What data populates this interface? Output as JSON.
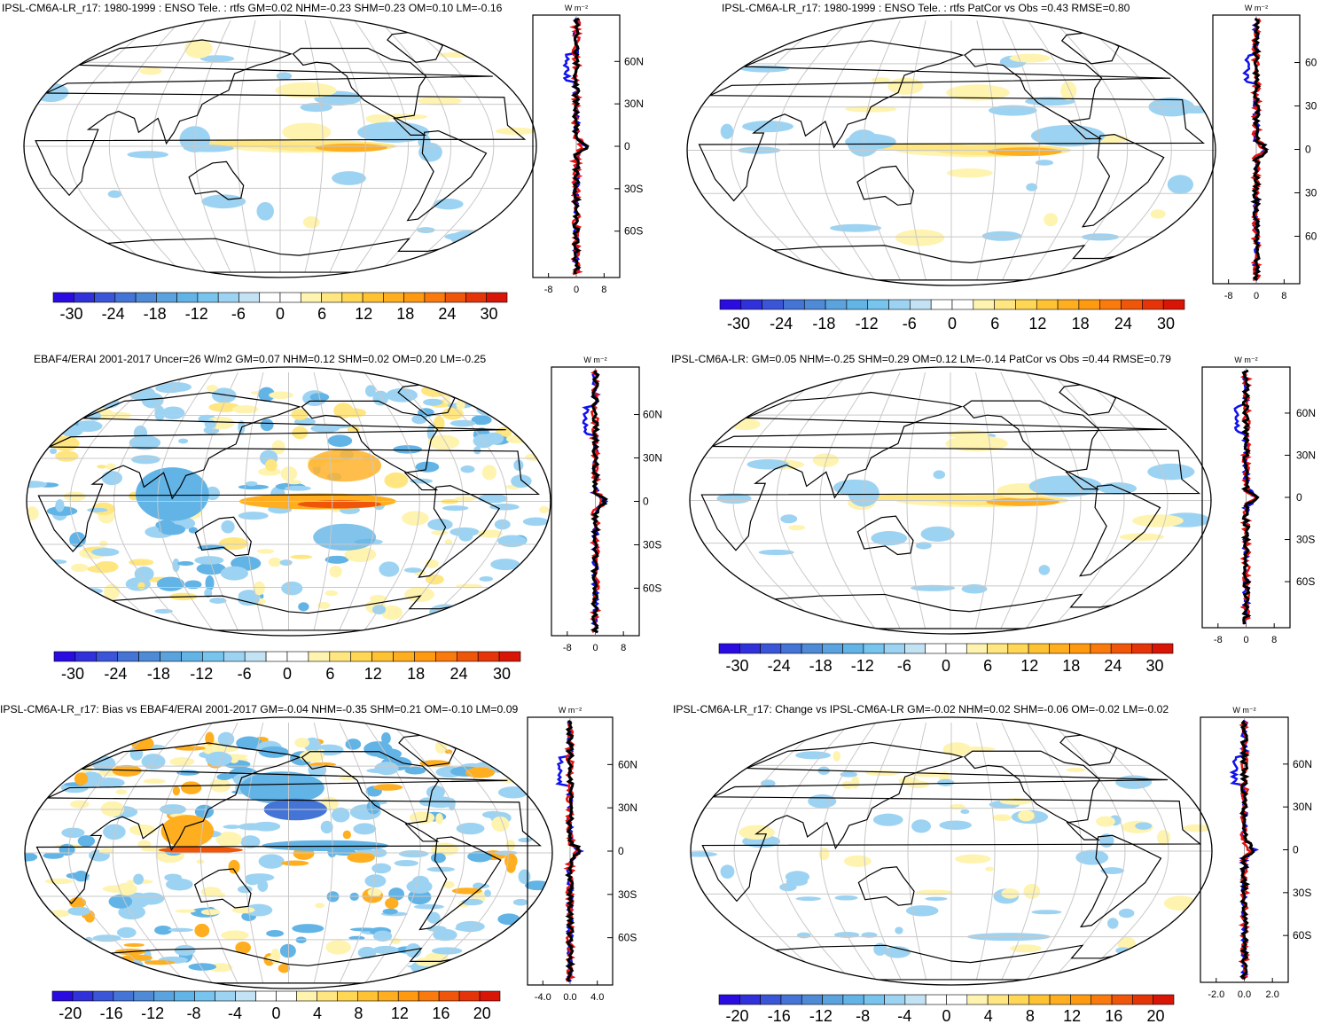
{
  "palettes": {
    "diverging_24": [
      "#2a0be0",
      "#3131dc",
      "#3b55d9",
      "#4474d6",
      "#4f8ad6",
      "#5aa3de",
      "#62b4e6",
      "#77c4ee",
      "#9dd3f2",
      "#c3e3f5",
      "#ffffff",
      "#ffffff",
      "#fff3b0",
      "#ffe680",
      "#ffd755",
      "#ffc233",
      "#ffae1f",
      "#ff9a10",
      "#fb7a0d",
      "#f0560a",
      "#e53508",
      "#d81506"
    ],
    "diverging_22": [
      "#2a0be0",
      "#3131dc",
      "#3b55d9",
      "#4474d6",
      "#4f8ad6",
      "#5aa3de",
      "#62b4e6",
      "#77c4ee",
      "#9dd3f2",
      "#c3e3f5",
      "#ffffff",
      "#ffffff",
      "#fff3b0",
      "#ffe680",
      "#ffd755",
      "#ffc233",
      "#ffae1f",
      "#ff9a10",
      "#fb7a0d",
      "#f0560a",
      "#e53508",
      "#d81506"
    ]
  },
  "zonal_colors": {
    "obs": "#1010ee",
    "model": "#e81010",
    "diff": "#000000"
  },
  "panels": [
    {
      "id": "p1",
      "title": "IPSL-CM6A-LR_r17: 1980-1999 : ENSO Tele. : rtfs GM=0.02 NHM=-0.23 SHM=0.23 OM=0.10 LM=-0.16",
      "colorbar_labels": [
        "-30",
        "-24",
        "-18",
        "-12",
        "-6",
        "0",
        "6",
        "12",
        "18",
        "24",
        "30"
      ],
      "zonal_lat_labels": [
        "60N",
        "30N",
        "0",
        "30S",
        "60S"
      ],
      "zonal_x_labels": [
        "-8",
        "0",
        "8"
      ],
      "zonal_unit": "W m⁻²",
      "pattern": "model_enso"
    },
    {
      "id": "p2",
      "title": "IPSL-CM6A-LR_r17: 1980-1999 : ENSO Tele. : rtfs PatCor vs Obs =0.43 RMSE=0.80",
      "colorbar_labels": [
        "-30",
        "-24",
        "-18",
        "-12",
        "-6",
        "0",
        "6",
        "12",
        "18",
        "24",
        "30"
      ],
      "zonal_lat_labels": [
        "60",
        "30",
        "0",
        "30",
        "60"
      ],
      "zonal_x_labels": [
        "-8",
        "0",
        "8"
      ],
      "zonal_unit": "W m⁻²",
      "pattern": "model_enso"
    },
    {
      "id": "p3",
      "title": "EBAF4/ERAI 2001-2017 Uncer=26 W/m2 GM=0.07 NHM=0.12 SHM=0.02 OM=0.20 LM=-0.25",
      "colorbar_labels": [
        "-30",
        "-24",
        "-18",
        "-12",
        "-6",
        "0",
        "6",
        "12",
        "18",
        "24",
        "30"
      ],
      "zonal_lat_labels": [
        "60N",
        "30N",
        "0",
        "30S",
        "60S"
      ],
      "zonal_x_labels": [
        "-8",
        "0",
        "8"
      ],
      "zonal_unit": "W m⁻²",
      "pattern": "obs_noisy"
    },
    {
      "id": "p4",
      "title": "IPSL-CM6A-LR: GM=0.05 NHM=-0.25 SHM=0.29 OM=0.12 LM=-0.14 PatCor vs Obs =0.44 RMSE=0.79",
      "colorbar_labels": [
        "-30",
        "-24",
        "-18",
        "-12",
        "-6",
        "0",
        "6",
        "12",
        "18",
        "24",
        "30"
      ],
      "zonal_lat_labels": [
        "60N",
        "30N",
        "0",
        "30S",
        "60S"
      ],
      "zonal_x_labels": [
        "-8",
        "0",
        "8"
      ],
      "zonal_unit": "W m⁻²",
      "pattern": "model_enso"
    },
    {
      "id": "p5",
      "title": "IPSL-CM6A-LR_r17: Bias vs EBAF4/ERAI 2001-2017 GM=-0.04 NHM=-0.35 SHM=0.21 OM=-0.10 LM=0.09",
      "colorbar_labels": [
        "-20",
        "-16",
        "-12",
        "-8",
        "-4",
        "0",
        "4",
        "8",
        "12",
        "16",
        "20"
      ],
      "zonal_lat_labels": [
        "60N",
        "30N",
        "0",
        "30S",
        "60S"
      ],
      "zonal_x_labels": [
        "-4.0",
        "0.0",
        "4.0"
      ],
      "zonal_unit": "W m⁻²",
      "pattern": "bias"
    },
    {
      "id": "p6",
      "title": "IPSL-CM6A-LR_r17: Change vs IPSL-CM6A-LR GM=-0.02 NHM=0.02 SHM=-0.06 OM=-0.02 LM=-0.02",
      "colorbar_labels": [
        "-20",
        "-16",
        "-12",
        "-8",
        "-4",
        "0",
        "4",
        "8",
        "12",
        "16",
        "20"
      ],
      "zonal_lat_labels": [
        "60N",
        "30N",
        "0",
        "30S",
        "60S"
      ],
      "zonal_x_labels": [
        "-2.0",
        "0.0",
        "2.0"
      ],
      "zonal_unit": "W m⁻²",
      "pattern": "change"
    }
  ]
}
